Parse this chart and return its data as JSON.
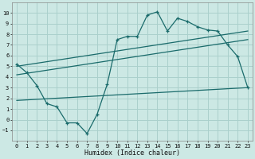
{
  "background_color": "#cce8e4",
  "grid_color": "#aad0cc",
  "line_color": "#1a6b6b",
  "xlabel": "Humidex (Indice chaleur)",
  "xlim": [
    -0.5,
    23.5
  ],
  "ylim": [
    -2,
    11
  ],
  "xticks": [
    0,
    1,
    2,
    3,
    4,
    5,
    6,
    7,
    8,
    9,
    10,
    11,
    12,
    13,
    14,
    15,
    16,
    17,
    18,
    19,
    20,
    21,
    22,
    23
  ],
  "yticks": [
    -1,
    0,
    1,
    2,
    3,
    4,
    5,
    6,
    7,
    8,
    9,
    10
  ],
  "line1_x": [
    0,
    1,
    2,
    3,
    4,
    5,
    6,
    7,
    8,
    9,
    10,
    11,
    12,
    13,
    14,
    15,
    16,
    17,
    18,
    19,
    20,
    21,
    22,
    23
  ],
  "line1_y": [
    5.2,
    4.4,
    3.2,
    1.5,
    1.2,
    -0.3,
    -0.3,
    -1.3,
    0.5,
    3.3,
    7.5,
    7.8,
    7.8,
    9.8,
    10.1,
    8.3,
    9.5,
    9.2,
    8.7,
    8.4,
    8.3,
    7.0,
    5.9,
    3.0
  ],
  "line2_x": [
    0,
    23
  ],
  "line2_y": [
    5.0,
    8.3
  ],
  "line3_x": [
    0,
    23
  ],
  "line3_y": [
    4.2,
    7.5
  ],
  "line4_x": [
    0,
    23
  ],
  "line4_y": [
    1.8,
    3.0
  ]
}
